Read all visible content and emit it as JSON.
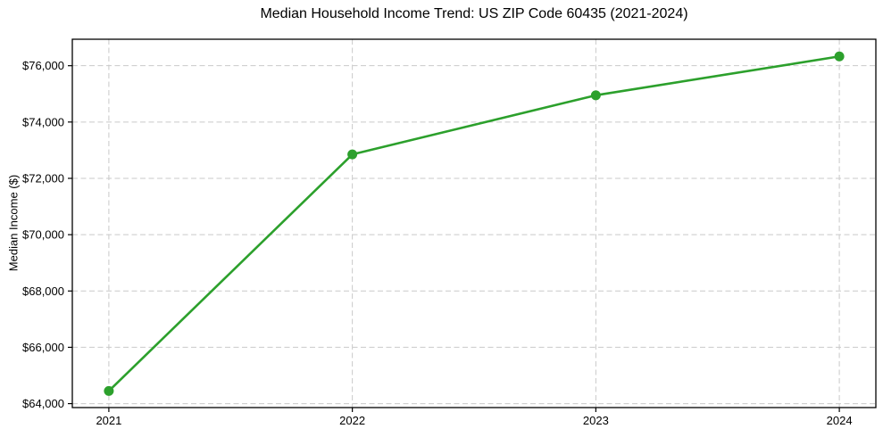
{
  "chart_data": {
    "type": "line",
    "title": "Median Household Income Trend: US ZIP Code 60435 (2021-2024)",
    "xlabel": "",
    "ylabel": "Median Income ($)",
    "x": [
      2021,
      2022,
      2023,
      2024
    ],
    "xtick_labels": [
      "2021",
      "2022",
      "2023",
      "2024"
    ],
    "series": [
      {
        "name": "Median Household Income",
        "values": [
          64450,
          72850,
          74950,
          76330
        ],
        "color": "#2ca02c"
      }
    ],
    "ytick_values": [
      64000,
      66000,
      68000,
      70000,
      72000,
      74000,
      76000
    ],
    "ytick_labels": [
      "$64,000",
      "$66,000",
      "$68,000",
      "$70,000",
      "$72,000",
      "$74,000",
      "$76,000"
    ],
    "ylim": [
      63860,
      76940
    ],
    "xlim": [
      2020.85,
      2024.15
    ],
    "grid": {
      "on": true,
      "style": "dashed",
      "color": "#c9c9c9"
    },
    "legend": "none",
    "marker": "circle",
    "axes_color": "#000000",
    "background": "#ffffff"
  }
}
